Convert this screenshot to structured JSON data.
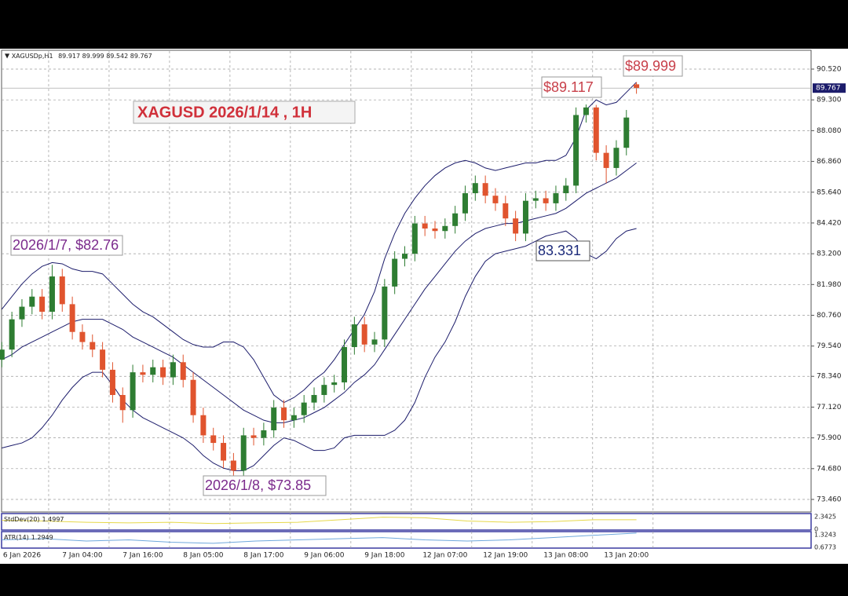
{
  "chart_data": {
    "type": "candlestick",
    "symbol": "XAGUSDp,H1",
    "title": "XAGUSD 2026/1/14 , 1H",
    "categories": [
      null,
      null,
      "6 Jan 2026",
      null,
      null,
      null,
      null,
      null,
      "7 Jan 04:00",
      null,
      null,
      null,
      null,
      null,
      "7 Jan 16:00",
      null,
      null,
      null,
      null,
      null,
      "8 Jan 05:00",
      null,
      null,
      null,
      null,
      null,
      "8 Jan 17:00",
      null,
      null,
      null,
      null,
      null,
      "9 Jan 06:00",
      null,
      null,
      null,
      null,
      null,
      "9 Jan 18:00",
      null,
      null,
      null,
      null,
      null,
      "12 Jan 07:00",
      null,
      null,
      null,
      null,
      null,
      "12 Jan 19:00",
      null,
      null,
      null,
      null,
      null,
      "13 Jan 08:00",
      null,
      null,
      null,
      null,
      null,
      "13 Jan 20:00",
      null
    ],
    "open": [
      79.0,
      79.4,
      80.6,
      81.1,
      81.5,
      80.9,
      82.3,
      81.2,
      80.1,
      79.7,
      79.4,
      78.6,
      77.6,
      77.0,
      78.5,
      78.4,
      78.7,
      78.3,
      78.9,
      78.2,
      76.8,
      76.0,
      75.7,
      75.0,
      74.6,
      76.0,
      75.9,
      76.2,
      77.1,
      76.6,
      76.8,
      77.3,
      77.6,
      78.0,
      78.1,
      79.5,
      80.4,
      79.6,
      79.8,
      81.9,
      83.0,
      83.2,
      84.4,
      84.2,
      84.1,
      84.3,
      84.8,
      85.6,
      86.0,
      85.5,
      85.2,
      84.6,
      84.0,
      85.3,
      85.4,
      85.2,
      85.6,
      85.9,
      88.7,
      89.0,
      87.2,
      86.6,
      87.4,
      89.917
    ],
    "high": [
      79.7,
      80.9,
      81.4,
      81.8,
      81.8,
      82.76,
      82.6,
      81.5,
      80.4,
      80.0,
      79.7,
      78.9,
      77.9,
      78.8,
      78.8,
      79.0,
      79.0,
      79.2,
      79.2,
      78.5,
      77.1,
      76.3,
      76.0,
      75.3,
      76.3,
      76.3,
      76.5,
      77.4,
      77.4,
      77.1,
      77.6,
      77.9,
      78.3,
      78.4,
      79.8,
      80.7,
      80.7,
      80.1,
      82.2,
      83.3,
      83.5,
      84.7,
      84.7,
      84.5,
      84.6,
      85.1,
      85.9,
      86.3,
      86.3,
      85.8,
      85.5,
      84.9,
      85.6,
      85.7,
      85.7,
      85.9,
      86.2,
      89.0,
      89.117,
      89.1,
      87.5,
      87.7,
      88.9,
      89.999
    ],
    "low": [
      78.7,
      79.1,
      80.3,
      80.8,
      80.6,
      80.6,
      80.9,
      79.8,
      79.4,
      79.1,
      78.3,
      77.3,
      76.5,
      76.7,
      78.1,
      78.1,
      78.0,
      78.0,
      77.9,
      76.5,
      75.7,
      75.4,
      74.7,
      73.85,
      74.3,
      75.6,
      75.6,
      75.9,
      76.3,
      76.3,
      76.5,
      77.0,
      77.3,
      77.7,
      77.8,
      79.2,
      79.3,
      79.3,
      79.5,
      81.6,
      82.7,
      82.9,
      83.9,
      83.8,
      83.8,
      84.0,
      84.5,
      85.3,
      85.2,
      84.9,
      84.3,
      83.7,
      83.7,
      85.0,
      84.9,
      84.9,
      85.3,
      85.6,
      88.4,
      86.9,
      86.0,
      86.3,
      87.1,
      89.542
    ],
    "close": [
      79.4,
      80.6,
      81.1,
      81.5,
      80.9,
      82.3,
      81.2,
      80.1,
      79.7,
      79.4,
      78.6,
      77.6,
      77.0,
      78.5,
      78.4,
      78.7,
      78.3,
      78.9,
      78.2,
      76.8,
      76.0,
      75.7,
      75.0,
      74.6,
      76.0,
      75.9,
      76.2,
      77.1,
      76.6,
      76.8,
      77.3,
      77.6,
      78.0,
      78.1,
      79.5,
      80.4,
      79.6,
      79.8,
      81.9,
      83.0,
      83.2,
      84.4,
      84.2,
      84.1,
      84.3,
      84.8,
      85.6,
      86.0,
      85.5,
      85.2,
      84.6,
      84.0,
      85.3,
      85.4,
      85.2,
      85.6,
      85.9,
      88.7,
      89.0,
      87.2,
      86.6,
      87.4,
      88.6,
      89.767
    ],
    "up_color": "#2e7d32",
    "down_color": "#e0542e",
    "series": [
      {
        "name": "Upper band",
        "color": "#1c1c6b",
        "values": [
          81.0,
          81.5,
          82.0,
          82.4,
          82.7,
          82.85,
          82.8,
          82.6,
          82.5,
          82.5,
          82.4,
          82.0,
          81.6,
          81.2,
          80.9,
          80.7,
          80.4,
          80.1,
          79.8,
          79.6,
          79.5,
          79.5,
          79.7,
          79.7,
          79.5,
          79.0,
          78.3,
          77.6,
          77.3,
          77.5,
          77.8,
          78.2,
          78.5,
          79.0,
          79.6,
          80.2,
          80.8,
          81.7,
          83.0,
          84.0,
          84.8,
          85.4,
          85.9,
          86.3,
          86.6,
          86.8,
          86.9,
          86.8,
          86.6,
          86.5,
          86.6,
          86.7,
          86.8,
          86.8,
          86.9,
          86.9,
          87.1,
          87.8,
          88.9,
          89.3,
          89.1,
          89.2,
          89.6,
          90.0
        ]
      },
      {
        "name": "Middle band",
        "color": "#1c1c6b",
        "values": [
          79.0,
          79.2,
          79.5,
          79.7,
          79.9,
          80.1,
          80.3,
          80.5,
          80.6,
          80.6,
          80.6,
          80.4,
          80.2,
          79.9,
          79.7,
          79.5,
          79.3,
          79.1,
          78.8,
          78.5,
          78.2,
          77.9,
          77.6,
          77.3,
          77.0,
          76.8,
          76.6,
          76.5,
          76.5,
          76.6,
          76.7,
          76.9,
          77.1,
          77.4,
          77.7,
          78.1,
          78.4,
          78.8,
          79.4,
          80.0,
          80.6,
          81.2,
          81.8,
          82.3,
          82.8,
          83.3,
          83.7,
          84.0,
          84.2,
          84.3,
          84.4,
          84.4,
          84.5,
          84.6,
          84.7,
          84.8,
          85.0,
          85.3,
          85.6,
          85.8,
          86.0,
          86.2,
          86.5,
          86.8
        ]
      },
      {
        "name": "Lower band",
        "color": "#1c1c6b",
        "values": [
          75.5,
          75.6,
          75.7,
          75.9,
          76.3,
          76.8,
          77.4,
          77.9,
          78.3,
          78.5,
          78.5,
          78.0,
          77.4,
          77.0,
          76.7,
          76.5,
          76.3,
          76.1,
          75.9,
          75.6,
          75.2,
          74.9,
          74.7,
          74.6,
          74.6,
          74.8,
          75.2,
          75.6,
          75.9,
          75.8,
          75.6,
          75.4,
          75.4,
          75.5,
          75.9,
          76.0,
          76.0,
          76.0,
          76.0,
          76.2,
          76.6,
          77.3,
          78.3,
          79.1,
          79.7,
          80.5,
          81.5,
          82.3,
          82.9,
          83.2,
          83.3,
          83.4,
          83.5,
          83.7,
          83.9,
          84.0,
          84.1,
          83.8,
          83.2,
          83.0,
          83.3,
          83.8,
          84.1,
          84.2
        ]
      }
    ],
    "ylim": [
      72.962,
      91.236
    ],
    "yticks": [
      {
        "value": 90.52,
        "label": "90.520"
      },
      {
        "value": 89.3,
        "label": "89.300"
      },
      {
        "value": 88.08,
        "label": "88.080"
      },
      {
        "value": 86.86,
        "label": "86.860"
      },
      {
        "value": 85.64,
        "label": "85.640"
      },
      {
        "value": 84.42,
        "label": "84.420"
      },
      {
        "value": 83.2,
        "label": "83.200"
      },
      {
        "value": 81.98,
        "label": "81.980"
      },
      {
        "value": 80.76,
        "label": "80.760"
      },
      {
        "value": 79.54,
        "label": "79.540"
      },
      {
        "value": 78.34,
        "label": "78.340"
      },
      {
        "value": 77.12,
        "label": "77.120"
      },
      {
        "value": 75.9,
        "label": "75.900"
      },
      {
        "value": 74.68,
        "label": "74.680"
      },
      {
        "value": 73.46,
        "label": "73.460"
      }
    ],
    "grid": true,
    "annotations": [
      "$89.999",
      "$89.117",
      "2026/1/7, $82.76",
      "2026/1/8, $73.85",
      "83.331"
    ],
    "indicators": [
      {
        "name": "StdDev(20)",
        "last": 1.4997,
        "color": "#e6d84a",
        "ylim": [
          0,
          2.3425
        ],
        "yticks": [
          2.3425,
          0
        ],
        "values": [
          1.4,
          1.3,
          1.1,
          1.0,
          1.1,
          0.9,
          1.0,
          1.1,
          1.5,
          1.9,
          1.8,
          1.3,
          1.1,
          1.2,
          1.5,
          1.4997
        ]
      },
      {
        "name": "ATR(14)",
        "last": 1.2949,
        "color": "#6fa8dc",
        "ylim": [
          0.6773,
          1.3243
        ],
        "yticks": [
          1.3243,
          0.6773
        ],
        "values": [
          1.0,
          1.05,
          0.95,
          1.0,
          0.9,
          0.85,
          0.95,
          1.0,
          1.05,
          1.1,
          1.0,
          0.95,
          1.0,
          1.1,
          1.2,
          1.2949
        ]
      }
    ]
  }
}
